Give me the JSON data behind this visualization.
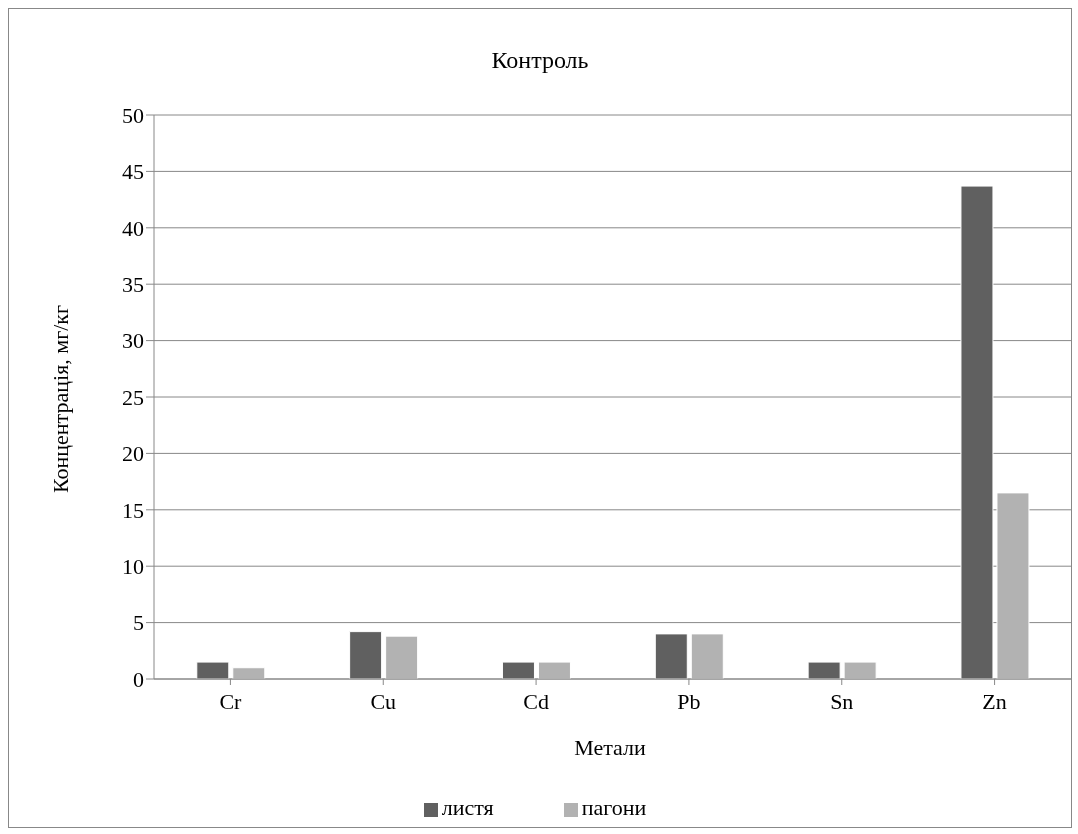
{
  "chart_data": {
    "type": "bar",
    "title": "Контроль",
    "xlabel": "Метали",
    "ylabel": "Концентрація, мг/кг",
    "categories": [
      "Cr",
      "Cu",
      "Cd",
      "Pb",
      "Sn",
      "Zn"
    ],
    "series": [
      {
        "name": "листя",
        "color": "#606060",
        "values": [
          1.5,
          4.2,
          1.5,
          4.0,
          1.5,
          43.7
        ]
      },
      {
        "name": "пагони",
        "color": "#b2b2b2",
        "values": [
          1.0,
          3.8,
          1.5,
          4.0,
          1.5,
          16.5
        ]
      }
    ],
    "ylim": [
      0,
      50
    ],
    "yticks": [
      0,
      5,
      10,
      15,
      20,
      25,
      30,
      35,
      40,
      45,
      50
    ],
    "grid": "y",
    "legend": "bottom"
  }
}
